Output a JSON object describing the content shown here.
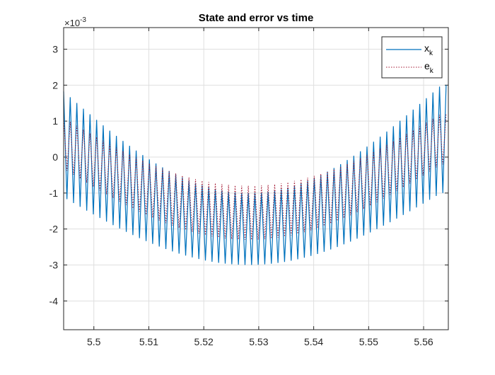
{
  "chart_data": {
    "type": "line",
    "title": "State and error vs time",
    "xlabel": "",
    "ylabel": "",
    "y_exponent_label": "×10",
    "y_exponent_power": "-3",
    "xlim": [
      5.4945,
      5.5645
    ],
    "ylim": [
      -4.8,
      3.6
    ],
    "y_scale_factor": 0.001,
    "grid": true,
    "legend_position": "top-right",
    "x_ticks": [
      5.5,
      5.51,
      5.52,
      5.53,
      5.54,
      5.55,
      5.56
    ],
    "x_tick_labels": [
      "5.5",
      "5.51",
      "5.52",
      "5.53",
      "5.54",
      "5.55",
      "5.56"
    ],
    "y_ticks": [
      3,
      2,
      1,
      0,
      -1,
      -2,
      -3,
      -4
    ],
    "y_tick_labels": [
      "3",
      "2",
      "1",
      "0",
      "-1",
      "-2",
      "-3",
      "-4"
    ],
    "series": [
      {
        "name": "x",
        "name_subscript": "k",
        "color": "#0072BD",
        "style": "solid",
        "x_start": 5.4945,
        "period": 0.0012,
        "x_end": 5.5645,
        "envelope_center": 5.5282,
        "envelope_halfwidth": 0.035,
        "peak_max": 2.0,
        "peak_min": -1.0,
        "trough_max": -1.0,
        "trough_min": -3.0
      },
      {
        "name": "e",
        "name_subscript": "k",
        "color": "#A2142F",
        "style": "dotted",
        "x_start": 5.4945,
        "period": 0.0012,
        "x_end": 5.5645,
        "envelope_center": 5.5282,
        "envelope_halfwidth": 0.035,
        "peak_max": 1.2,
        "peak_min": -0.8,
        "trough_max": -0.2,
        "trough_min": -2.3
      }
    ]
  }
}
